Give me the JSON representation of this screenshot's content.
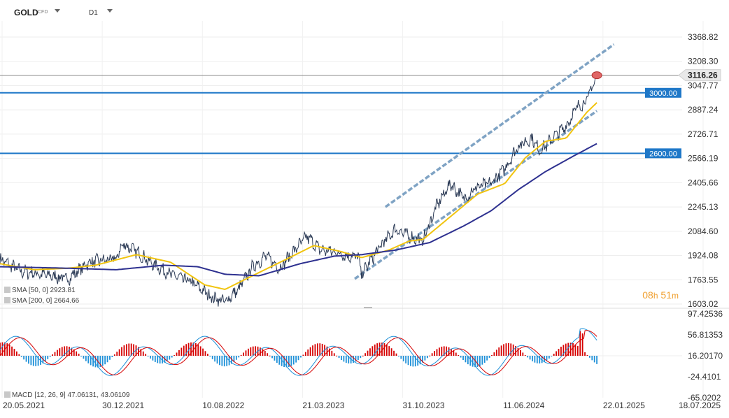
{
  "symbol": {
    "name": "GOLD",
    "type": "CFD",
    "timeframe": "D1"
  },
  "countdown": {
    "hours": "08",
    "hours_unit": "h",
    "minutes": "51",
    "minutes_unit": "m"
  },
  "colors": {
    "price": "#2b3a55",
    "sma50": "#f1c40f",
    "sma200": "#2e3190",
    "level": "#1f78c8",
    "channel": "#7fa3c4",
    "macd_up": "#d60000",
    "macd_down": "#1e90d8"
  },
  "chart_data": [
    {
      "type": "line",
      "title": "GOLD CFD D1",
      "ylim": [
        1603.02,
        3368.82
      ],
      "y_ticks": [
        "3368.82",
        "3208.30",
        "3047.77",
        "2887.24",
        "2726.71",
        "2566.19",
        "2405.66",
        "2245.13",
        "2084.60",
        "1924.08",
        "1763.55",
        "1603.02"
      ],
      "x_ticks": [
        "20.05.2021",
        "30.12.2021",
        "10.08.2022",
        "21.03.2023",
        "31.10.2023",
        "11.06.2024",
        "22.01.2025",
        "18.07.2025"
      ],
      "last_price": {
        "label": "3116.26",
        "value": 3116.26
      },
      "horizontal_levels": [
        {
          "label": "3000.00",
          "value": 3000.0
        },
        {
          "label": "2600.00",
          "value": 2600.0
        }
      ],
      "channel": {
        "upper": [
          [
            0.565,
            2245
          ],
          [
            0.9,
            3320
          ]
        ],
        "lower": [
          [
            0.52,
            1770
          ],
          [
            0.875,
            2880
          ]
        ]
      },
      "series": [
        {
          "name": "Price",
          "control_points": [
            [
              0,
              1900
            ],
            [
              0.03,
              1820
            ],
            [
              0.06,
              1800
            ],
            [
              0.1,
              1770
            ],
            [
              0.13,
              1880
            ],
            [
              0.17,
              1900
            ],
            [
              0.18,
              2000
            ],
            [
              0.2,
              1950
            ],
            [
              0.22,
              1880
            ],
            [
              0.25,
              1800
            ],
            [
              0.28,
              1750
            ],
            [
              0.31,
              1650
            ],
            [
              0.33,
              1620
            ],
            [
              0.35,
              1700
            ],
            [
              0.37,
              1850
            ],
            [
              0.39,
              1920
            ],
            [
              0.41,
              1840
            ],
            [
              0.43,
              1950
            ],
            [
              0.45,
              2050
            ],
            [
              0.47,
              1960
            ],
            [
              0.49,
              1950
            ],
            [
              0.51,
              1920
            ],
            [
              0.525,
              1920
            ],
            [
              0.53,
              1800
            ],
            [
              0.545,
              1900
            ],
            [
              0.56,
              2000
            ],
            [
              0.58,
              2100
            ],
            [
              0.6,
              2050
            ],
            [
              0.62,
              2020
            ],
            [
              0.64,
              2250
            ],
            [
              0.66,
              2400
            ],
            [
              0.68,
              2300
            ],
            [
              0.7,
              2380
            ],
            [
              0.72,
              2400
            ],
            [
              0.74,
              2500
            ],
            [
              0.76,
              2650
            ],
            [
              0.78,
              2700
            ],
            [
              0.79,
              2620
            ],
            [
              0.8,
              2650
            ],
            [
              0.81,
              2700
            ],
            [
              0.83,
              2780
            ],
            [
              0.845,
              2900
            ],
            [
              0.86,
              2950
            ],
            [
              0.875,
              3116
            ]
          ]
        },
        {
          "name": "SMA [50, 0]",
          "value": 2923.81,
          "value_label": "2923.81",
          "control_points": [
            [
              0,
              1870
            ],
            [
              0.05,
              1830
            ],
            [
              0.1,
              1840
            ],
            [
              0.14,
              1860
            ],
            [
              0.2,
              1930
            ],
            [
              0.25,
              1880
            ],
            [
              0.3,
              1730
            ],
            [
              0.33,
              1700
            ],
            [
              0.37,
              1790
            ],
            [
              0.42,
              1900
            ],
            [
              0.46,
              1990
            ],
            [
              0.5,
              1950
            ],
            [
              0.53,
              1910
            ],
            [
              0.57,
              1960
            ],
            [
              0.6,
              2020
            ],
            [
              0.62,
              2030
            ],
            [
              0.66,
              2180
            ],
            [
              0.7,
              2330
            ],
            [
              0.74,
              2400
            ],
            [
              0.77,
              2570
            ],
            [
              0.8,
              2680
            ],
            [
              0.83,
              2700
            ],
            [
              0.86,
              2870
            ],
            [
              0.875,
              2935
            ]
          ]
        },
        {
          "name": "SMA [200, 0]",
          "value": 2664.66,
          "value_label": "2664.66",
          "control_points": [
            [
              0,
              1850
            ],
            [
              0.1,
              1840
            ],
            [
              0.17,
              1830
            ],
            [
              0.24,
              1860
            ],
            [
              0.29,
              1850
            ],
            [
              0.33,
              1800
            ],
            [
              0.38,
              1790
            ],
            [
              0.44,
              1870
            ],
            [
              0.49,
              1920
            ],
            [
              0.53,
              1930
            ],
            [
              0.58,
              1960
            ],
            [
              0.63,
              2010
            ],
            [
              0.68,
              2120
            ],
            [
              0.72,
              2220
            ],
            [
              0.76,
              2360
            ],
            [
              0.8,
              2480
            ],
            [
              0.84,
              2580
            ],
            [
              0.875,
              2664
            ]
          ]
        }
      ]
    },
    {
      "type": "line",
      "title": "MACD [12, 26, 9]",
      "ylim": [
        -65.0202,
        97.42536
      ],
      "y_ticks": [
        "97.42536",
        "56.81353",
        "16.20170",
        "-24.4101",
        "-65.0202"
      ],
      "series": [
        {
          "name": "MACD",
          "value": 47.06131,
          "value_label": "47.06131"
        },
        {
          "name": "Signal",
          "value": 43.06109,
          "value_label": "43.06109"
        }
      ]
    }
  ]
}
